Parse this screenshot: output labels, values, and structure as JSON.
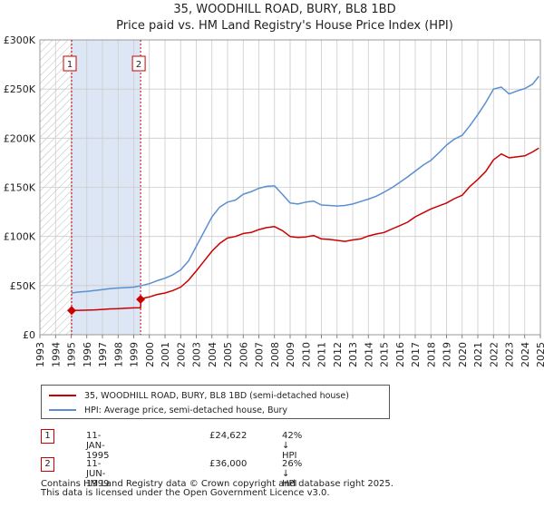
{
  "title": "35, WOODHILL ROAD, BURY, BL8 1BD",
  "subtitle": "Price paid vs. HM Land Registry's House Price Index (HPI)",
  "colors": {
    "property": "#cc0000",
    "hpi": "#5b8fd1",
    "shade": "#dde6f4",
    "hatch": "#bbbbbb",
    "grid": "#cccccc"
  },
  "chart_data": {
    "type": "line",
    "title": "35, WOODHILL ROAD, BURY, BL8 1BD",
    "subtitle": "Price paid vs. HM Land Registry's House Price Index (HPI)",
    "x_ticks": [
      "1993",
      "1994",
      "1995",
      "1996",
      "1997",
      "1998",
      "1999",
      "2000",
      "2001",
      "2002",
      "2003",
      "2004",
      "2005",
      "2006",
      "2007",
      "2008",
      "2009",
      "2010",
      "2011",
      "2012",
      "2013",
      "2014",
      "2015",
      "2016",
      "2017",
      "2018",
      "2019",
      "2020",
      "2021",
      "2022",
      "2023",
      "2024",
      "2025"
    ],
    "y_ticks": [
      {
        "value": 0,
        "label": "£0"
      },
      {
        "value": 50000,
        "label": "£50K"
      },
      {
        "value": 100000,
        "label": "£100K"
      },
      {
        "value": 150000,
        "label": "£150K"
      },
      {
        "value": 200000,
        "label": "£200K"
      },
      {
        "value": 250000,
        "label": "£250K"
      },
      {
        "value": 300000,
        "label": "£300K"
      }
    ],
    "xlim": [
      1993,
      2025
    ],
    "ylim": [
      0,
      300000
    ],
    "grid": true,
    "series": [
      {
        "name": "35, WOODHILL ROAD, BURY, BL8 1BD (semi-detached house)",
        "color": "#cc0000",
        "x": [
          1995.03,
          1995.5,
          1996,
          1996.5,
          1997,
          1997.5,
          1998,
          1998.5,
          1999,
          1999.44,
          1999.45,
          1999.7,
          2000,
          2000.5,
          2001,
          2001.5,
          2002,
          2002.5,
          2003,
          2003.5,
          2004,
          2004.5,
          2005,
          2005.5,
          2006,
          2006.5,
          2007,
          2007.5,
          2008,
          2008.5,
          2009,
          2009.5,
          2010,
          2010.5,
          2011,
          2011.5,
          2012,
          2012.5,
          2013,
          2013.5,
          2014,
          2014.5,
          2015,
          2015.5,
          2016,
          2016.5,
          2017,
          2017.5,
          2018,
          2018.5,
          2019,
          2019.5,
          2020,
          2020.5,
          2021,
          2021.5,
          2022,
          2022.5,
          2023,
          2023.5,
          2024,
          2024.5,
          2024.9
        ],
        "values": [
          24622,
          24800,
          25000,
          25300,
          25800,
          26300,
          26500,
          27000,
          27300,
          27500,
          36000,
          37500,
          38500,
          41000,
          42500,
          45000,
          48500,
          55500,
          65000,
          75000,
          85000,
          93000,
          98500,
          100000,
          103000,
          104000,
          107000,
          109000,
          110000,
          106000,
          100000,
          99000,
          99500,
          101000,
          97500,
          97000,
          96000,
          95000,
          96500,
          97500,
          100500,
          102500,
          104000,
          107500,
          111000,
          114500,
          120000,
          124000,
          128000,
          131000,
          134000,
          138500,
          142000,
          151000,
          158000,
          166000,
          178000,
          184000,
          180000,
          181000,
          182000,
          186000,
          190000
        ]
      },
      {
        "name": "HPI: Average price, semi-detached house, Bury",
        "color": "#5b8fd1",
        "x": [
          1995.03,
          1995.5,
          1996,
          1996.5,
          1997,
          1997.5,
          1998,
          1998.5,
          1999,
          1999.5,
          2000,
          2000.5,
          2001,
          2001.5,
          2002,
          2002.5,
          2003,
          2003.5,
          2004,
          2004.5,
          2005,
          2005.5,
          2006,
          2006.5,
          2007,
          2007.5,
          2008,
          2008.5,
          2009,
          2009.5,
          2010,
          2010.5,
          2011,
          2011.5,
          2012,
          2012.5,
          2013,
          2013.5,
          2014,
          2014.5,
          2015,
          2015.5,
          2016,
          2016.5,
          2017,
          2017.5,
          2018,
          2018.5,
          2019,
          2019.5,
          2020,
          2020.5,
          2021,
          2021.5,
          2022,
          2022.5,
          2023,
          2023.5,
          2024,
          2024.5,
          2024.9
        ],
        "values": [
          42500,
          43500,
          44000,
          45000,
          46000,
          47000,
          47500,
          48000,
          48500,
          50000,
          52000,
          55000,
          57500,
          61000,
          66000,
          75000,
          90000,
          105000,
          120000,
          130000,
          135000,
          137000,
          143000,
          145500,
          149000,
          151000,
          151500,
          143000,
          134000,
          133000,
          135000,
          136000,
          132000,
          131500,
          131000,
          131500,
          133000,
          135500,
          138000,
          141000,
          145000,
          149500,
          155000,
          160500,
          166500,
          172500,
          177500,
          185000,
          193000,
          199000,
          203000,
          213000,
          224000,
          236000,
          250000,
          252000,
          245000,
          248000,
          250500,
          255000,
          263000
        ]
      }
    ],
    "sales": [
      {
        "id": "1",
        "x": 1995.03,
        "value": 24622
      },
      {
        "id": "2",
        "x": 1999.44,
        "value": 36000
      }
    ]
  },
  "legend": {
    "property_label": "35, WOODHILL ROAD, BURY, BL8 1BD (semi-detached house)",
    "hpi_label": "HPI: Average price, semi-detached house, Bury"
  },
  "transactions": [
    {
      "id": "1",
      "date": "11-JAN-1995",
      "price": "£24,622",
      "hpi": "42% ↓ HPI"
    },
    {
      "id": "2",
      "date": "11-JUN-1999",
      "price": "£36,000",
      "hpi": "26% ↓ HPI"
    }
  ],
  "footer": {
    "line1": "Contains HM Land Registry data © Crown copyright and database right 2025.",
    "line2": "This data is licensed under the Open Government Licence v3.0."
  }
}
